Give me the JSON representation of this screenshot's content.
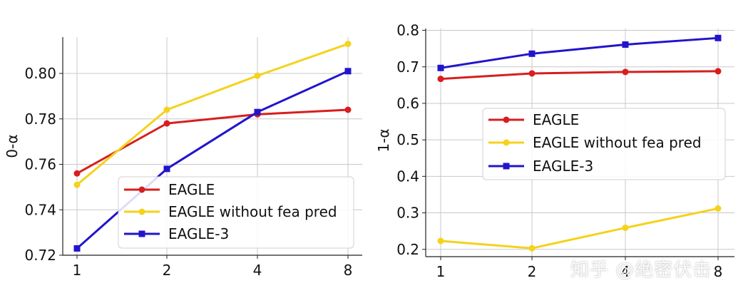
{
  "chart_data": [
    {
      "type": "line",
      "title": "",
      "xlabel": "",
      "ylabel": "0-α",
      "x": [
        1,
        2,
        4,
        8
      ],
      "x_tick_labels": [
        "1",
        "2",
        "4",
        "8"
      ],
      "ylim": [
        0.72,
        0.816
      ],
      "y_ticks": [
        0.72,
        0.74,
        0.76,
        0.78,
        0.8
      ],
      "y_tick_labels": [
        "0.72",
        "0.74",
        "0.76",
        "0.78",
        "0.80"
      ],
      "grid": true,
      "legend_position": "lower-right",
      "series": [
        {
          "name": "EAGLE",
          "color": "#d81e1e",
          "marker": "circle",
          "values": [
            0.756,
            0.778,
            0.782,
            0.784
          ]
        },
        {
          "name": "EAGLE without fea pred",
          "color": "#f5d21c",
          "marker": "circle",
          "values": [
            0.751,
            0.784,
            0.799,
            0.813
          ]
        },
        {
          "name": "EAGLE-3",
          "color": "#2214cc",
          "marker": "square",
          "values": [
            0.723,
            0.758,
            0.783,
            0.801
          ]
        }
      ]
    },
    {
      "type": "line",
      "title": "",
      "xlabel": "",
      "ylabel": "1-α",
      "x": [
        1,
        2,
        4,
        8
      ],
      "x_tick_labels": [
        "1",
        "2",
        "4",
        "8"
      ],
      "ylim": [
        0.18,
        0.805
      ],
      "y_ticks": [
        0.2,
        0.3,
        0.4,
        0.5,
        0.6,
        0.7,
        0.8
      ],
      "y_tick_labels": [
        "0.2",
        "0.3",
        "0.4",
        "0.5",
        "0.6",
        "0.7",
        "0.8"
      ],
      "grid": true,
      "legend_position": "center-right",
      "series": [
        {
          "name": "EAGLE",
          "color": "#d81e1e",
          "marker": "circle",
          "values": [
            0.667,
            0.682,
            0.686,
            0.688
          ]
        },
        {
          "name": "EAGLE without fea pred",
          "color": "#f5d21c",
          "marker": "circle",
          "values": [
            0.223,
            0.203,
            0.259,
            0.312
          ]
        },
        {
          "name": "EAGLE-3",
          "color": "#2214cc",
          "marker": "square",
          "values": [
            0.697,
            0.736,
            0.761,
            0.779
          ]
        }
      ]
    }
  ],
  "watermark": "知乎 @绝密伏击"
}
